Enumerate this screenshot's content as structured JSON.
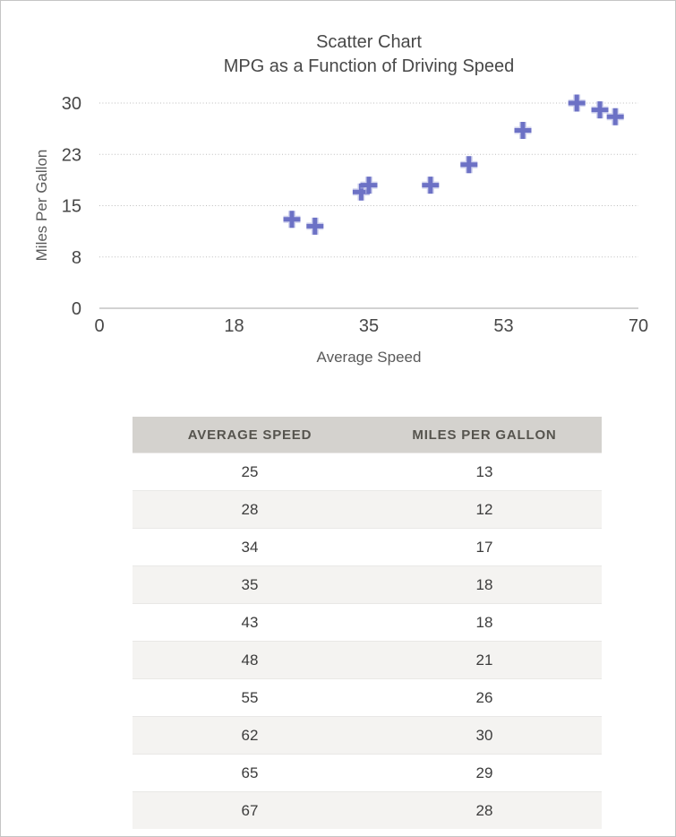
{
  "colors": {
    "marker": "#6C71C5",
    "marker_halo": "#B3B6E2",
    "gridline": "#BDBDBD",
    "axis_line": "#C4C4C4",
    "tick_text": "#474747",
    "title_text": "#484848",
    "axis_title_text": "#5A5A5A",
    "table_header_bg": "#D4D2CE",
    "table_header_text": "#56544E",
    "row_alt_bg": "#F4F3F1",
    "row_border": "#E9E8E6",
    "cell_text": "#3C3C3C",
    "frame_border": "#C5C5C5"
  },
  "chart_data": {
    "type": "scatter",
    "title": "Scatter Chart",
    "subtitle": "MPG as a Function of Driving Speed",
    "xlabel": "Average Speed",
    "ylabel": "Miles Per Gallon",
    "xlim": [
      0,
      70
    ],
    "ylim": [
      0,
      30
    ],
    "x_ticks": [
      "0",
      "18",
      "35",
      "53",
      "70"
    ],
    "y_ticks": [
      "0",
      "8",
      "15",
      "23",
      "30"
    ],
    "grid": "horizontal dotted",
    "legend": "none",
    "marker_shape": "plus",
    "series": [
      {
        "name": "Miles Per Gallon",
        "points": [
          [
            25,
            13
          ],
          [
            28,
            12
          ],
          [
            34,
            17
          ],
          [
            35,
            18
          ],
          [
            43,
            18
          ],
          [
            48,
            21
          ],
          [
            55,
            26
          ],
          [
            62,
            30
          ],
          [
            65,
            29
          ],
          [
            67,
            28
          ]
        ]
      }
    ]
  },
  "table": {
    "headers": [
      "AVERAGE SPEED",
      "MILES PER GALLON"
    ],
    "rows": [
      [
        "25",
        "13"
      ],
      [
        "28",
        "12"
      ],
      [
        "34",
        "17"
      ],
      [
        "35",
        "18"
      ],
      [
        "43",
        "18"
      ],
      [
        "48",
        "21"
      ],
      [
        "55",
        "26"
      ],
      [
        "62",
        "30"
      ],
      [
        "65",
        "29"
      ],
      [
        "67",
        "28"
      ]
    ]
  }
}
